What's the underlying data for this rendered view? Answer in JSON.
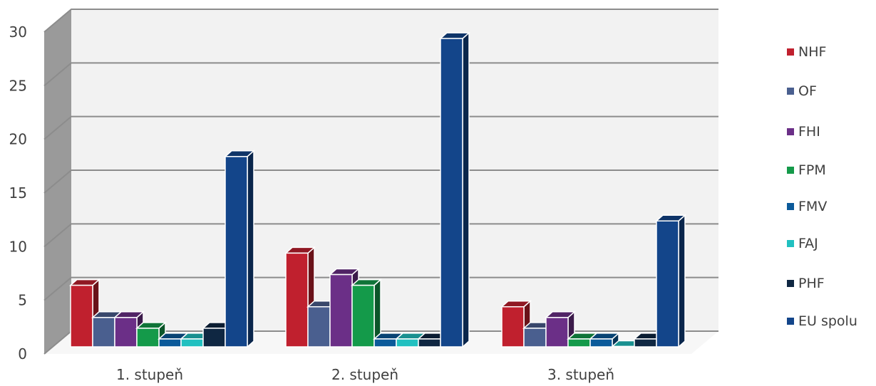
{
  "chart_data": {
    "type": "bar",
    "title": "",
    "xlabel": "",
    "ylabel": "",
    "ylim": [
      0,
      30
    ],
    "yticks": [
      "0",
      "5",
      "10",
      "15",
      "20",
      "25",
      "30"
    ],
    "grid": true,
    "legend_position": "right",
    "style": "3d-clustered",
    "categories": [
      "1. stupeň",
      "2. stupeň",
      "3. stupeň"
    ],
    "series": [
      {
        "name": "NHF",
        "color": "#c0202e",
        "values": [
          6,
          9,
          4
        ]
      },
      {
        "name": "OF",
        "color": "#4a5f8f",
        "values": [
          3,
          4,
          2
        ]
      },
      {
        "name": "FHI",
        "color": "#6b2f87",
        "values": [
          3,
          7,
          3
        ]
      },
      {
        "name": "FPM",
        "color": "#149a4a",
        "values": [
          2,
          6,
          1
        ]
      },
      {
        "name": "FMV",
        "color": "#0b5a9a",
        "values": [
          1,
          1,
          1
        ]
      },
      {
        "name": "FAJ",
        "color": "#21c0c0",
        "values": [
          1,
          1,
          0.3
        ]
      },
      {
        "name": "PHF",
        "color": "#0f2742",
        "values": [
          2,
          1,
          1
        ]
      },
      {
        "name": "EU spolu",
        "color": "#13458a",
        "values": [
          18,
          29,
          12
        ]
      }
    ]
  }
}
